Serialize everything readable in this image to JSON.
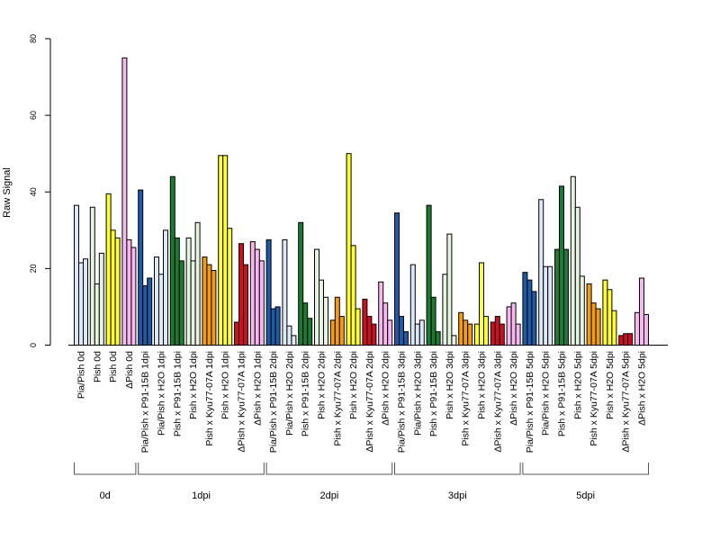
{
  "chart_data": {
    "type": "bar",
    "title": "",
    "xlabel": "",
    "ylabel": "Raw Signal",
    "ylim": [
      0,
      80
    ],
    "yticks": [
      0,
      20,
      40,
      60,
      80
    ],
    "grid": false,
    "legend": "none",
    "bars_per_category": 3,
    "categories": [
      {
        "label": "Pia/Pish 0d",
        "color": "#dde8f6",
        "values": [
          36.5,
          21.5,
          22.5
        ]
      },
      {
        "label": "Pish 0d",
        "color": "#e6f3e0",
        "values": [
          36.0,
          16.0,
          24.0
        ]
      },
      {
        "label": "Pish 0d",
        "color": "#ffff33",
        "values": [
          39.5,
          30.0,
          28.0
        ]
      },
      {
        "label": "ΔPish 0d",
        "color": "#f6b8ee",
        "values": [
          75.0,
          27.5,
          25.5
        ]
      },
      {
        "label": "Pia/Pish x P91-15B 1dpi",
        "color": "#1f5aa6",
        "values": [
          40.5,
          15.5,
          17.5
        ]
      },
      {
        "label": "Pia/Pish x H2O 1dpi",
        "color": "#dde8f6",
        "values": [
          23.0,
          18.5,
          30.0
        ]
      },
      {
        "label": "Pish x P91-15B 1dpi",
        "color": "#1e7a33",
        "values": [
          44.0,
          28.0,
          22.0
        ]
      },
      {
        "label": "Pish x H2O 1dpi",
        "color": "#e6f3e0",
        "values": [
          28.0,
          22.0,
          32.0
        ]
      },
      {
        "label": "Pish x Kyu77-07A 1dpi",
        "color": "#f39c12",
        "values": [
          23.0,
          21.0,
          19.5
        ]
      },
      {
        "label": "Pish x H2O 1dpi",
        "color": "#ffff33",
        "values": [
          49.5,
          49.5,
          30.5
        ]
      },
      {
        "label": "ΔPish x Kyu77-07A 1dpi",
        "color": "#cc1020",
        "values": [
          6.0,
          26.5,
          21.0
        ]
      },
      {
        "label": "ΔPish x H2O 1dpi",
        "color": "#f6b8ee",
        "values": [
          27.0,
          25.0,
          22.0
        ]
      },
      {
        "label": "Pia/Pish x P91-15B 2dpi",
        "color": "#1f5aa6",
        "values": [
          27.5,
          9.5,
          10.0
        ]
      },
      {
        "label": "Pia/Pish x H2O 2dpi",
        "color": "#dde8f6",
        "values": [
          27.5,
          5.0,
          2.5
        ]
      },
      {
        "label": "Pish x P91-15B 2dpi",
        "color": "#1e7a33",
        "values": [
          32.0,
          11.0,
          7.0
        ]
      },
      {
        "label": "Pish x H2O 2dpi",
        "color": "#e6f3e0",
        "values": [
          25.0,
          17.0,
          12.5
        ]
      },
      {
        "label": "Pish x Kyu77-07A 2dpi",
        "color": "#f39c12",
        "values": [
          6.5,
          12.5,
          7.5
        ]
      },
      {
        "label": "Pish x H2O 2dpi",
        "color": "#ffff33",
        "values": [
          50.0,
          26.0,
          9.5
        ]
      },
      {
        "label": "ΔPish x Kyu77-07A 2dpi",
        "color": "#cc1020",
        "values": [
          12.0,
          7.5,
          5.5
        ]
      },
      {
        "label": "ΔPish x H2O 2dpi",
        "color": "#f6b8ee",
        "values": [
          16.5,
          11.0,
          6.5
        ]
      },
      {
        "label": "Pia/Pish x P91-15B 3dpi",
        "color": "#1f5aa6",
        "values": [
          34.5,
          7.5,
          3.5
        ]
      },
      {
        "label": "Pia/Pish x H2O 3dpi",
        "color": "#dde8f6",
        "values": [
          21.0,
          5.5,
          6.5
        ]
      },
      {
        "label": "Pish x P91-15B 3dpi",
        "color": "#1e7a33",
        "values": [
          36.5,
          12.5,
          3.5
        ]
      },
      {
        "label": "Pish x H2O 3dpi",
        "color": "#e6f3e0",
        "values": [
          18.5,
          29.0,
          2.5
        ]
      },
      {
        "label": "Pish x Kyu77-07A 3dpi",
        "color": "#f39c12",
        "values": [
          8.5,
          6.5,
          5.5
        ]
      },
      {
        "label": "Pish x H2O 3dpi",
        "color": "#ffff33",
        "values": [
          5.5,
          21.5,
          7.5
        ]
      },
      {
        "label": "ΔPish x Kyu77-07A 3dpi",
        "color": "#cc1020",
        "values": [
          6.0,
          7.5,
          5.5
        ]
      },
      {
        "label": "ΔPish x H2O 3dpi",
        "color": "#f6b8ee",
        "values": [
          10.0,
          11.0,
          5.5
        ]
      },
      {
        "label": "Pia/Pish x P91-15B 5dpi",
        "color": "#1f5aa6",
        "values": [
          19.0,
          17.0,
          14.0
        ]
      },
      {
        "label": "Pia/Pish x H2O 5dpi",
        "color": "#dde8f6",
        "values": [
          38.0,
          20.5,
          20.5
        ]
      },
      {
        "label": "Pish x P91-15B 5dpi",
        "color": "#1e7a33",
        "values": [
          25.0,
          41.5,
          25.0
        ]
      },
      {
        "label": "Pish x H2O 5dpi",
        "color": "#e6f3e0",
        "values": [
          44.0,
          36.0,
          18.0
        ]
      },
      {
        "label": "Pish x Kyu77-07A 5dpi",
        "color": "#f39c12",
        "values": [
          16.0,
          11.0,
          9.5
        ]
      },
      {
        "label": "Pish x H2O 5dpi",
        "color": "#ffff33",
        "values": [
          17.0,
          14.5,
          9.0
        ]
      },
      {
        "label": "ΔPish x Kyu77-07A 5dpi",
        "color": "#cc1020",
        "values": [
          2.5,
          3.0,
          3.0
        ]
      },
      {
        "label": "ΔPish x H2O 5dpi",
        "color": "#f6b8ee",
        "values": [
          8.5,
          17.5,
          8.0
        ]
      }
    ],
    "groups": [
      {
        "label": "0d",
        "first": 0,
        "last": 3
      },
      {
        "label": "1dpi",
        "first": 4,
        "last": 11
      },
      {
        "label": "2dpi",
        "first": 12,
        "last": 19
      },
      {
        "label": "3dpi",
        "first": 20,
        "last": 27
      },
      {
        "label": "5dpi",
        "first": 28,
        "last": 35
      }
    ]
  }
}
